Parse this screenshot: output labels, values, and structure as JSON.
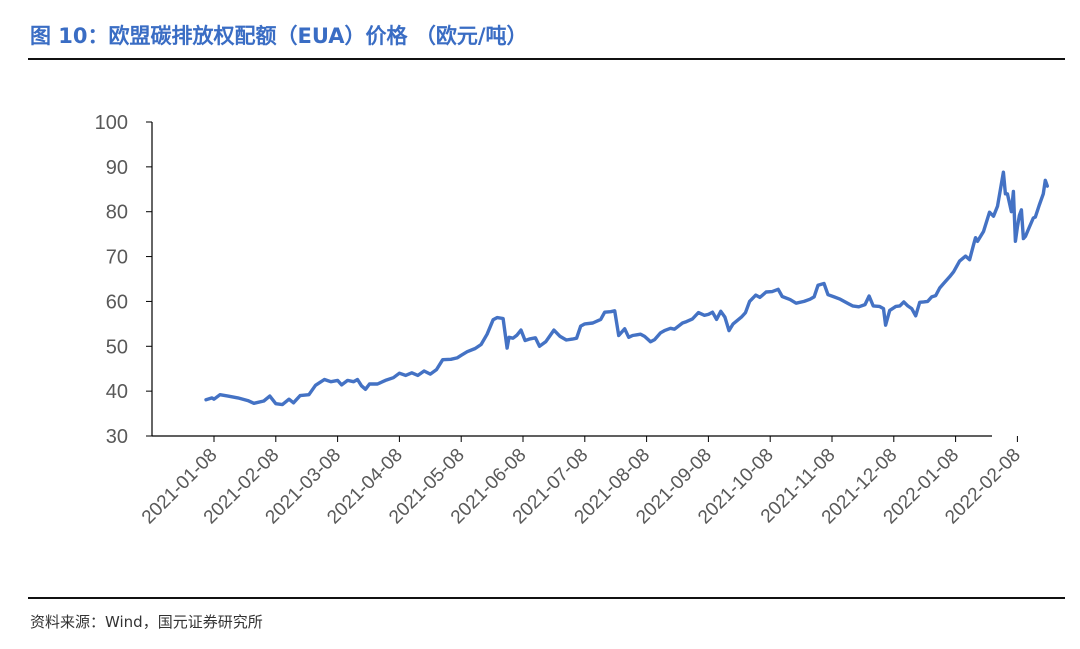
{
  "figure": {
    "title": "图 10：欧盟碳排放权配额（EUA）价格 （欧元/吨）",
    "source": "资料来源：Wind，国元证券研究所"
  },
  "colors": {
    "line": "#4472C4",
    "title": "#3A6DC4",
    "axis": "#000000",
    "tick_text": "#595959"
  },
  "chart_data": {
    "type": "line",
    "title": "",
    "xlabel": "",
    "ylabel": "",
    "ylim": [
      30,
      100
    ],
    "yticks": [
      30,
      40,
      50,
      60,
      70,
      80,
      90,
      100
    ],
    "xlim": [
      "2021-01-08",
      "2022-02-23"
    ],
    "xticks": [
      "2021-01-08",
      "2021-02-08",
      "2021-03-08",
      "2021-04-08",
      "2021-05-08",
      "2021-06-08",
      "2021-07-08",
      "2021-08-08",
      "2021-09-08",
      "2021-10-08",
      "2021-11-08",
      "2021-12-08",
      "2022-01-08",
      "2022-02-08"
    ],
    "grid": false,
    "legend": "none",
    "series": [
      {
        "name": "",
        "points": [
          [
            "2021-01-04",
            38.1
          ],
          [
            "2021-01-07",
            38.5
          ],
          [
            "2021-01-08",
            38.2
          ],
          [
            "2021-01-11",
            39.2
          ],
          [
            "2021-01-15",
            38.9
          ],
          [
            "2021-01-20",
            38.5
          ],
          [
            "2021-01-25",
            37.9
          ],
          [
            "2021-01-28",
            37.3
          ],
          [
            "2021-02-02",
            37.8
          ],
          [
            "2021-02-05",
            38.9
          ],
          [
            "2021-02-08",
            37.2
          ],
          [
            "2021-02-11",
            37.0
          ],
          [
            "2021-02-14",
            38.2
          ],
          [
            "2021-02-16",
            37.4
          ],
          [
            "2021-02-19",
            39.0
          ],
          [
            "2021-02-23",
            39.2
          ],
          [
            "2021-02-26",
            41.3
          ],
          [
            "2021-03-02",
            42.6
          ],
          [
            "2021-03-05",
            42.1
          ],
          [
            "2021-03-08",
            42.4
          ],
          [
            "2021-03-10",
            41.4
          ],
          [
            "2021-03-13",
            42.4
          ],
          [
            "2021-03-16",
            42.1
          ],
          [
            "2021-03-18",
            42.6
          ],
          [
            "2021-03-20",
            41.2
          ],
          [
            "2021-03-22",
            40.4
          ],
          [
            "2021-03-24",
            41.6
          ],
          [
            "2021-03-28",
            41.6
          ],
          [
            "2021-04-01",
            42.4
          ],
          [
            "2021-04-05",
            43.0
          ],
          [
            "2021-04-08",
            44.0
          ],
          [
            "2021-04-11",
            43.5
          ],
          [
            "2021-04-14",
            44.1
          ],
          [
            "2021-04-17",
            43.5
          ],
          [
            "2021-04-20",
            44.5
          ],
          [
            "2021-04-23",
            43.8
          ],
          [
            "2021-04-26",
            44.8
          ],
          [
            "2021-04-29",
            47.0
          ],
          [
            "2021-05-03",
            47.1
          ],
          [
            "2021-05-06",
            47.4
          ],
          [
            "2021-05-08",
            48.0
          ],
          [
            "2021-05-11",
            48.8
          ],
          [
            "2021-05-15",
            49.5
          ],
          [
            "2021-05-18",
            50.4
          ],
          [
            "2021-05-21",
            52.7
          ],
          [
            "2021-05-24",
            55.9
          ],
          [
            "2021-05-26",
            56.4
          ],
          [
            "2021-05-29",
            56.2
          ],
          [
            "2021-05-31",
            49.6
          ],
          [
            "2021-06-01",
            52.0
          ],
          [
            "2021-06-03",
            51.8
          ],
          [
            "2021-06-05",
            52.5
          ],
          [
            "2021-06-07",
            53.6
          ],
          [
            "2021-06-09",
            51.3
          ],
          [
            "2021-06-11",
            51.6
          ],
          [
            "2021-06-14",
            51.9
          ],
          [
            "2021-06-16",
            50.0
          ],
          [
            "2021-06-19",
            51.0
          ],
          [
            "2021-06-21",
            52.3
          ],
          [
            "2021-06-23",
            53.6
          ],
          [
            "2021-06-26",
            52.2
          ],
          [
            "2021-06-29",
            51.4
          ],
          [
            "2021-07-02",
            51.6
          ],
          [
            "2021-07-04",
            51.8
          ],
          [
            "2021-07-06",
            54.5
          ],
          [
            "2021-07-08",
            55.0
          ],
          [
            "2021-07-12",
            55.2
          ],
          [
            "2021-07-16",
            56.0
          ],
          [
            "2021-07-18",
            57.6
          ],
          [
            "2021-07-21",
            57.7
          ],
          [
            "2021-07-23",
            57.9
          ],
          [
            "2021-07-25",
            52.4
          ],
          [
            "2021-07-28",
            53.9
          ],
          [
            "2021-07-30",
            52.0
          ],
          [
            "2021-08-01",
            52.4
          ],
          [
            "2021-08-05",
            52.7
          ],
          [
            "2021-08-07",
            52.2
          ],
          [
            "2021-08-10",
            51.0
          ],
          [
            "2021-08-12",
            51.5
          ],
          [
            "2021-08-15",
            53.0
          ],
          [
            "2021-08-17",
            53.5
          ],
          [
            "2021-08-20",
            54.0
          ],
          [
            "2021-08-22",
            53.8
          ],
          [
            "2021-08-26",
            55.2
          ],
          [
            "2021-08-28",
            55.5
          ],
          [
            "2021-08-31",
            56.1
          ],
          [
            "2021-09-03",
            57.5
          ],
          [
            "2021-09-06",
            56.9
          ],
          [
            "2021-09-08",
            57.1
          ],
          [
            "2021-09-10",
            57.6
          ],
          [
            "2021-09-12",
            56.0
          ],
          [
            "2021-09-14",
            57.8
          ],
          [
            "2021-09-16",
            56.5
          ],
          [
            "2021-09-18",
            53.5
          ],
          [
            "2021-09-20",
            55.0
          ],
          [
            "2021-09-24",
            56.5
          ],
          [
            "2021-09-26",
            57.5
          ],
          [
            "2021-09-28",
            60.0
          ],
          [
            "2021-10-01",
            61.4
          ],
          [
            "2021-10-03",
            60.9
          ],
          [
            "2021-10-06",
            62.1
          ],
          [
            "2021-10-09",
            62.2
          ],
          [
            "2021-10-12",
            62.7
          ],
          [
            "2021-10-14",
            61.1
          ],
          [
            "2021-10-18",
            60.4
          ],
          [
            "2021-10-21",
            59.6
          ],
          [
            "2021-10-25",
            60.0
          ],
          [
            "2021-10-28",
            60.5
          ],
          [
            "2021-10-30",
            61.0
          ],
          [
            "2021-11-01",
            63.6
          ],
          [
            "2021-11-04",
            64.0
          ],
          [
            "2021-11-06",
            61.5
          ],
          [
            "2021-11-09",
            61.0
          ],
          [
            "2021-11-12",
            60.5
          ],
          [
            "2021-11-16",
            59.5
          ],
          [
            "2021-11-18",
            59.0
          ],
          [
            "2021-11-21",
            58.8
          ],
          [
            "2021-11-24",
            59.3
          ],
          [
            "2021-11-26",
            61.2
          ],
          [
            "2021-11-28",
            59.0
          ],
          [
            "2021-12-01",
            58.9
          ],
          [
            "2021-12-03",
            58.4
          ],
          [
            "2021-12-04",
            54.7
          ],
          [
            "2021-12-06",
            58.0
          ],
          [
            "2021-12-09",
            58.9
          ],
          [
            "2021-12-11",
            59.0
          ],
          [
            "2021-12-13",
            59.9
          ],
          [
            "2021-12-15",
            59.0
          ],
          [
            "2021-12-17",
            58.4
          ],
          [
            "2021-12-19",
            56.8
          ],
          [
            "2021-12-21",
            59.8
          ],
          [
            "2021-12-23",
            59.9
          ],
          [
            "2021-12-25",
            60.0
          ],
          [
            "2021-12-27",
            61.0
          ],
          [
            "2021-12-29",
            61.3
          ],
          [
            "2021-12-31",
            63.0
          ],
          [
            "2022-01-02",
            64.0
          ],
          [
            "2022-01-05",
            65.5
          ],
          [
            "2022-01-07",
            66.6
          ],
          [
            "2022-01-10",
            69.0
          ],
          [
            "2022-01-13",
            70.1
          ],
          [
            "2022-01-15",
            69.3
          ],
          [
            "2022-01-17",
            72.6
          ],
          [
            "2022-01-18",
            74.2
          ],
          [
            "2022-01-19",
            73.4
          ],
          [
            "2022-01-22",
            75.6
          ],
          [
            "2022-01-25",
            79.9
          ],
          [
            "2022-01-27",
            79.0
          ],
          [
            "2022-01-29",
            81.2
          ],
          [
            "2022-02-01",
            88.8
          ],
          [
            "2022-02-02",
            84.0
          ],
          [
            "2022-02-03",
            84.0
          ],
          [
            "2022-02-05",
            80.0
          ],
          [
            "2022-02-06",
            84.5
          ],
          [
            "2022-02-07",
            73.4
          ],
          [
            "2022-02-08",
            76.6
          ],
          [
            "2022-02-09",
            79.2
          ],
          [
            "2022-02-10",
            80.4
          ],
          [
            "2022-02-11",
            74.0
          ],
          [
            "2022-02-12",
            74.5
          ],
          [
            "2022-02-14",
            76.6
          ],
          [
            "2022-02-16",
            78.6
          ],
          [
            "2022-02-17",
            78.8
          ],
          [
            "2022-02-19",
            81.5
          ],
          [
            "2022-02-21",
            84.0
          ],
          [
            "2022-02-22",
            87.0
          ],
          [
            "2022-02-23",
            85.7
          ]
        ]
      }
    ]
  }
}
